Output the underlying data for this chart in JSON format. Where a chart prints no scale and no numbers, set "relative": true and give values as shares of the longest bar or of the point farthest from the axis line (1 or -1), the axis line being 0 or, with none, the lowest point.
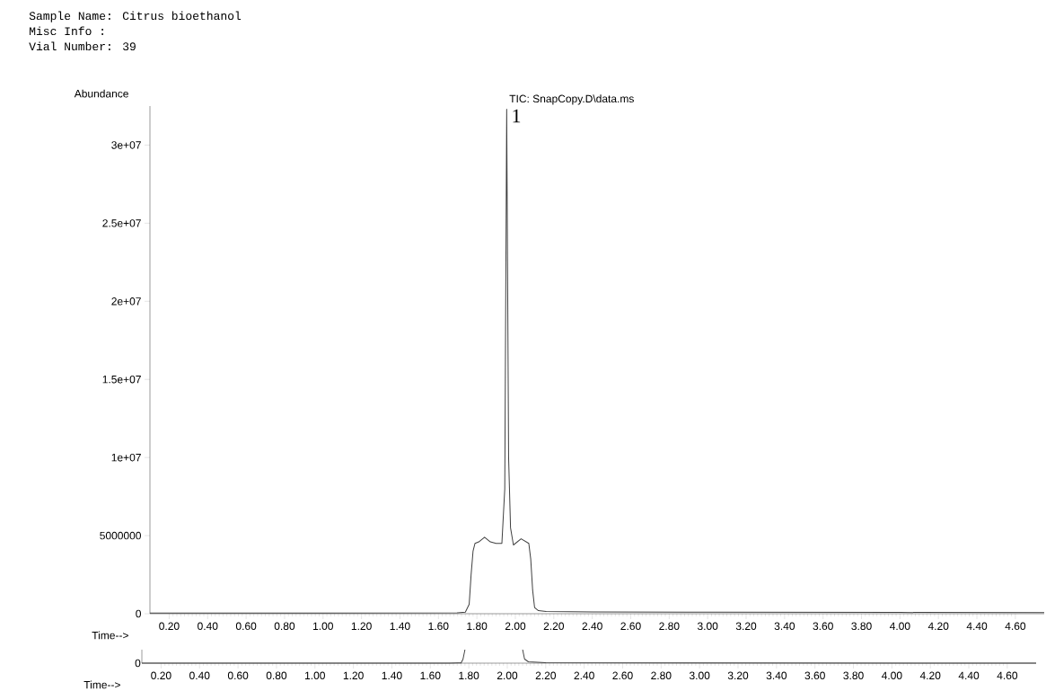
{
  "chart_data": [
    {
      "type": "line",
      "xlabel": "Time-->",
      "ylabel": "Abundance",
      "annotations": [
        "Sample Name: Citrus bioethanol",
        "Misc Info  :",
        "Vial Number: 39",
        "TIC: SnapCopy.D\\data.ms",
        {
          "text": "1",
          "x": 1.955,
          "y": 32300000
        }
      ],
      "series": [
        {
          "color": "#404040",
          "x": [
            0.1,
            1.0,
            1.7,
            1.74,
            1.76,
            1.77,
            1.78,
            1.79,
            1.81,
            1.84,
            1.87,
            1.9,
            1.93,
            1.945,
            1.955,
            1.965,
            1.975,
            1.99,
            2.03,
            2.07,
            2.08,
            2.09,
            2.1,
            2.12,
            2.16,
            2.4,
            3.0,
            4.0,
            4.75
          ],
          "values": [
            50000,
            50000,
            60000,
            100000,
            600000,
            2500000,
            4000000,
            4500000,
            4600000,
            4900000,
            4600000,
            4500000,
            4500000,
            8000000,
            32300000,
            10000000,
            5500000,
            4400000,
            4800000,
            4500000,
            3500000,
            1500000,
            400000,
            200000,
            150000,
            120000,
            100000,
            80000,
            70000
          ]
        }
      ],
      "xlim": [
        0.1,
        4.75
      ],
      "ylim": [
        0,
        32500000
      ],
      "xticks": [
        {
          "value": 0.2,
          "label": "0.20"
        },
        {
          "value": 0.4,
          "label": "0.40"
        },
        {
          "value": 0.6,
          "label": "0.60"
        },
        {
          "value": 0.8,
          "label": "0.80"
        },
        {
          "value": 1.0,
          "label": "1.00"
        },
        {
          "value": 1.2,
          "label": "1.20"
        },
        {
          "value": 1.4,
          "label": "1.40"
        },
        {
          "value": 1.6,
          "label": "1.60"
        },
        {
          "value": 1.8,
          "label": "1.80"
        },
        {
          "value": 2.0,
          "label": "2.00"
        },
        {
          "value": 2.2,
          "label": "2.20"
        },
        {
          "value": 2.4,
          "label": "2.40"
        },
        {
          "value": 2.6,
          "label": "2.60"
        },
        {
          "value": 2.8,
          "label": "2.80"
        },
        {
          "value": 3.0,
          "label": "3.00"
        },
        {
          "value": 3.2,
          "label": "3.20"
        },
        {
          "value": 3.4,
          "label": "3.40"
        },
        {
          "value": 3.6,
          "label": "3.60"
        },
        {
          "value": 3.8,
          "label": "3.80"
        },
        {
          "value": 4.0,
          "label": "4.00"
        },
        {
          "value": 4.2,
          "label": "4.20"
        },
        {
          "value": 4.4,
          "label": "4.40"
        },
        {
          "value": 4.6,
          "label": "4.60"
        }
      ],
      "yticks": [
        0,
        5000000,
        {
          "value": 10000000,
          "label": "1e+07"
        },
        {
          "value": 15000000,
          "label": "1.5e+07"
        },
        {
          "value": 20000000,
          "label": "2e+07"
        },
        {
          "value": 25000000,
          "label": "2.5e+07"
        },
        {
          "value": 30000000,
          "label": "3e+07"
        }
      ]
    },
    {
      "type": "line",
      "relative": true,
      "xlabel": "Time-->",
      "annotations": [
        "0"
      ],
      "series": [
        {
          "color": "#404040",
          "x": [
            0.1,
            1.7,
            1.76,
            1.77,
            1.78,
            1.9,
            2.08,
            2.09,
            2.11,
            2.2,
            4.75
          ],
          "values": [
            0,
            0,
            0.02,
            0.3,
            1,
            null,
            1,
            0.3,
            0.1,
            0.03,
            0
          ]
        }
      ],
      "xlim": [
        0.1,
        4.75
      ],
      "xticks": [
        {
          "value": 0.2,
          "label": "0.20"
        },
        {
          "value": 0.4,
          "label": "0.40"
        },
        {
          "value": 0.6,
          "label": "0.60"
        },
        {
          "value": 0.8,
          "label": "0.80"
        },
        {
          "value": 1.0,
          "label": "1.00"
        },
        {
          "value": 1.2,
          "label": "1.20"
        },
        {
          "value": 1.4,
          "label": "1.40"
        },
        {
          "value": 1.6,
          "label": "1.60"
        },
        {
          "value": 1.8,
          "label": "1.80"
        },
        {
          "value": 2.0,
          "label": "2.00"
        },
        {
          "value": 2.2,
          "label": "2.20"
        },
        {
          "value": 2.4,
          "label": "2.40"
        },
        {
          "value": 2.6,
          "label": "2.60"
        },
        {
          "value": 2.8,
          "label": "2.80"
        },
        {
          "value": 3.0,
          "label": "3.00"
        },
        {
          "value": 3.2,
          "label": "3.20"
        },
        {
          "value": 3.4,
          "label": "3.40"
        },
        {
          "value": 3.6,
          "label": "3.60"
        },
        {
          "value": 3.8,
          "label": "3.80"
        },
        {
          "value": 4.0,
          "label": "4.00"
        },
        {
          "value": 4.2,
          "label": "4.20"
        },
        {
          "value": 4.4,
          "label": "4.40"
        },
        {
          "value": 4.6,
          "label": "4.60"
        }
      ]
    }
  ]
}
